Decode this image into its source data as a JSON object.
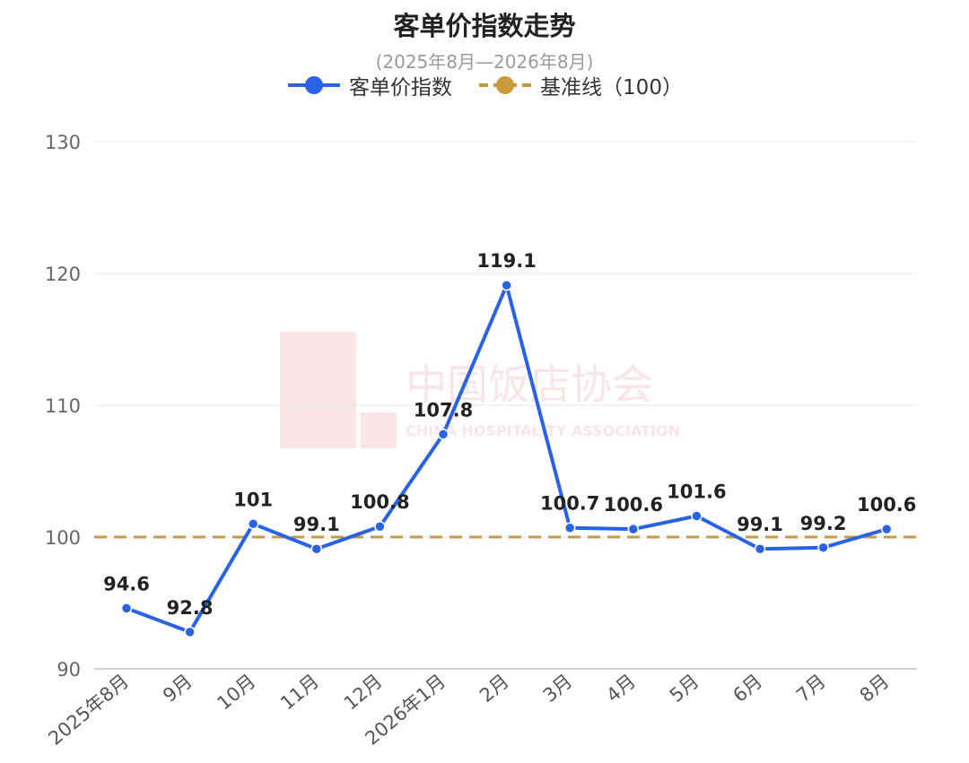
{
  "colors": {
    "index": "#2a62e6",
    "baseline": "#c99a3c",
    "grid": "#e8e8e8",
    "axis": "#c9d3dc"
  },
  "watermark": {
    "name_cn": "中国饭店协会",
    "name_en": "CHINA HOSPITALITY ASSOCIATION"
  },
  "chart_data": {
    "type": "line",
    "title": "客单价指数走势",
    "subtitle": "(2025年8月—2026年8月)",
    "categories": [
      "2025年8月",
      "9月",
      "10月",
      "11月",
      "12月",
      "2026年1月",
      "2月",
      "3月",
      "4月",
      "5月",
      "6月",
      "7月",
      "8月"
    ],
    "series": [
      {
        "name": "客单价指数",
        "values": [
          94.6,
          92.8,
          101,
          99.1,
          100.8,
          107.8,
          119.1,
          100.7,
          100.6,
          101.6,
          99.1,
          99.2,
          100.6
        ],
        "style": "solid"
      },
      {
        "name": "基准线（100）",
        "values": [
          100,
          100,
          100,
          100,
          100,
          100,
          100,
          100,
          100,
          100,
          100,
          100,
          100
        ],
        "style": "dashed"
      }
    ],
    "yticks": [
      90,
      100,
      110,
      120,
      130
    ],
    "ylim": [
      90,
      130
    ],
    "grid": true,
    "legend": "top-center"
  }
}
